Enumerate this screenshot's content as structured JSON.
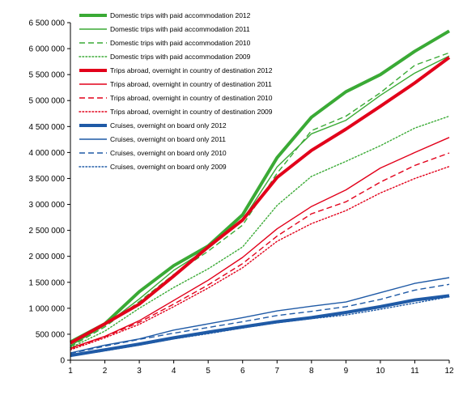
{
  "chart_data": {
    "type": "line",
    "title": "",
    "xlabel": "",
    "ylabel": "",
    "x": [
      1,
      2,
      3,
      4,
      5,
      6,
      7,
      8,
      9,
      10,
      11,
      12
    ],
    "x_tick_labels": [
      "1",
      "2",
      "3",
      "4",
      "5",
      "6",
      "7",
      "8",
      "9",
      "10",
      "11",
      "12"
    ],
    "ylim": [
      0,
      6500000
    ],
    "y_ticks": [
      0,
      500000,
      1000000,
      1500000,
      2000000,
      2500000,
      3000000,
      3500000,
      4000000,
      4500000,
      5000000,
      5500000,
      6000000,
      6500000
    ],
    "y_tick_labels": [
      "0",
      "500 000",
      "1 000 000",
      "1 500 000",
      "2 000 000",
      "2 500 000",
      "3 000 000",
      "3 500 000",
      "4 000 000",
      "4 500 000",
      "5 000 000",
      "5 500 000",
      "6 000 000",
      "6 500 000"
    ],
    "grid": false,
    "legend_position": "top-left",
    "series": [
      {
        "name": "Domestic trips with paid accommodation 2012",
        "color": "#3aaa35",
        "style": "solid",
        "weight": "thick",
        "values": [
          350000,
          700000,
          1320000,
          1820000,
          2200000,
          2800000,
          3900000,
          4680000,
          5170000,
          5500000,
          5950000,
          6340000
        ]
      },
      {
        "name": "Domestic trips with paid accommodation 2011",
        "color": "#3aaa35",
        "style": "solid",
        "weight": "thin",
        "values": [
          280000,
          670000,
          1180000,
          1730000,
          2150000,
          2700000,
          3720000,
          4360000,
          4620000,
          5100000,
          5530000,
          5860000
        ]
      },
      {
        "name": "Domestic trips with paid accommodation 2010",
        "color": "#3aaa35",
        "style": "dashed",
        "weight": "thin",
        "values": [
          260000,
          640000,
          1130000,
          1650000,
          2100000,
          2600000,
          3600000,
          4420000,
          4700000,
          5150000,
          5680000,
          5920000
        ]
      },
      {
        "name": "Domestic trips with paid accommodation 2009",
        "color": "#3aaa35",
        "style": "dotted",
        "weight": "thin",
        "values": [
          240000,
          560000,
          1000000,
          1400000,
          1760000,
          2180000,
          2980000,
          3540000,
          3830000,
          4130000,
          4470000,
          4700000
        ]
      },
      {
        "name": "Trips abroad, overnight in country of destination 2012",
        "color": "#e2001a",
        "style": "solid",
        "weight": "thick",
        "values": [
          330000,
          700000,
          1080000,
          1620000,
          2180000,
          2700000,
          3520000,
          4040000,
          4450000,
          4890000,
          5340000,
          5830000
        ]
      },
      {
        "name": "Trips abroad, overnight in country of destination 2011",
        "color": "#e2001a",
        "style": "solid",
        "weight": "thin",
        "values": [
          230000,
          460000,
          760000,
          1150000,
          1540000,
          1980000,
          2530000,
          2960000,
          3280000,
          3700000,
          4000000,
          4290000
        ]
      },
      {
        "name": "Trips abroad, overnight in country of destination 2010",
        "color": "#e2001a",
        "style": "dashed",
        "weight": "thin",
        "values": [
          220000,
          450000,
          730000,
          1080000,
          1450000,
          1860000,
          2390000,
          2820000,
          3050000,
          3430000,
          3750000,
          3990000
        ]
      },
      {
        "name": "Trips abroad, overnight in country of destination 2009",
        "color": "#e2001a",
        "style": "dotted",
        "weight": "thin",
        "values": [
          200000,
          430000,
          690000,
          1030000,
          1390000,
          1780000,
          2290000,
          2630000,
          2880000,
          3220000,
          3500000,
          3730000
        ]
      },
      {
        "name": "Cruises, overnight on board only 2012",
        "color": "#1f5aa6",
        "style": "solid",
        "weight": "thick",
        "values": [
          90000,
          200000,
          310000,
          430000,
          540000,
          640000,
          740000,
          820000,
          920000,
          1030000,
          1160000,
          1240000
        ]
      },
      {
        "name": "Cruises, overnight on board only 2011",
        "color": "#1f5aa6",
        "style": "solid",
        "weight": "thin",
        "values": [
          140000,
          290000,
          410000,
          580000,
          700000,
          820000,
          950000,
          1040000,
          1120000,
          1300000,
          1480000,
          1590000
        ]
      },
      {
        "name": "Cruises, overnight on board only 2010",
        "color": "#1f5aa6",
        "style": "dashed",
        "weight": "thin",
        "values": [
          130000,
          270000,
          400000,
          520000,
          630000,
          740000,
          860000,
          940000,
          1030000,
          1170000,
          1350000,
          1460000
        ]
      },
      {
        "name": "Cruises, overnight on board only 2009",
        "color": "#1f5aa6",
        "style": "dotted",
        "weight": "thin",
        "values": [
          80000,
          180000,
          290000,
          410000,
          510000,
          620000,
          720000,
          800000,
          870000,
          980000,
          1100000,
          1220000
        ]
      }
    ]
  }
}
